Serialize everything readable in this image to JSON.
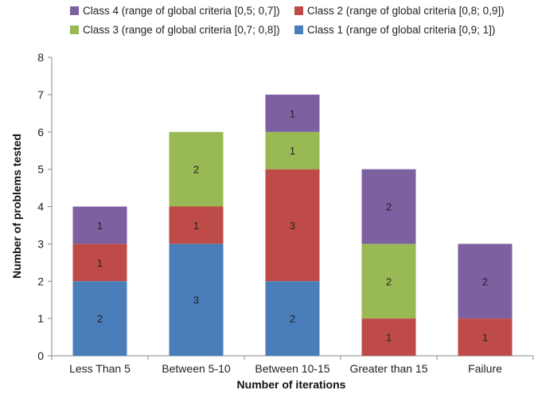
{
  "chart_data": {
    "type": "bar",
    "stacked": true,
    "categories": [
      "Less Than 5",
      "Between 5-10",
      "Between 10-15",
      "Greater than 15",
      "Failure"
    ],
    "series": [
      {
        "name": "Class 1 (range of global criteria [0,9; 1])",
        "color": "#4a7ebb",
        "values": [
          2,
          3,
          2,
          0,
          0
        ]
      },
      {
        "name": "Class 2 (range of global criteria [0,8; 0,9])",
        "color": "#be4b48",
        "values": [
          1,
          1,
          3,
          1,
          1
        ]
      },
      {
        "name": "Class 3 (range of global criteria [0,7; 0,8])",
        "color": "#98b954",
        "values": [
          0,
          2,
          1,
          2,
          0
        ]
      },
      {
        "name": "Class 4 (range of global criteria [0,5; 0,7])",
        "color": "#7d60a0",
        "values": [
          1,
          0,
          1,
          2,
          2
        ]
      }
    ],
    "legend_order": [
      3,
      1,
      2,
      0
    ],
    "xlabel": "Number of iterations",
    "ylabel": "Number of problems tested",
    "ylim": [
      0,
      8
    ],
    "yticks": [
      0,
      1,
      2,
      3,
      4,
      5,
      6,
      7,
      8
    ],
    "legend_position": "top"
  }
}
